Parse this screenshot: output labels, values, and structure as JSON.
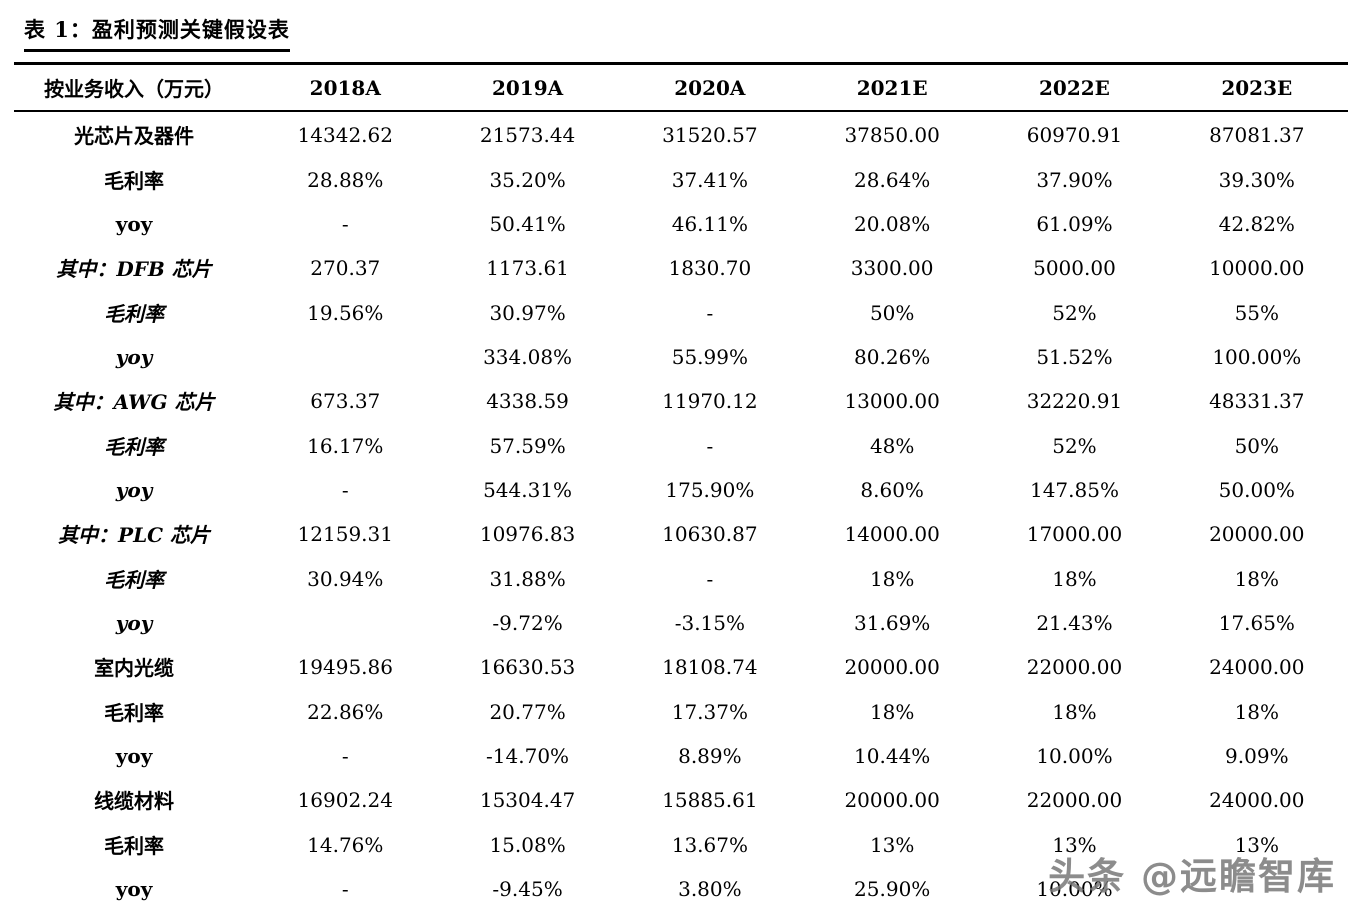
{
  "page": {
    "title": "表 1：盈利预测关键假设表"
  },
  "watermark": {
    "text": "头条 @远瞻智库"
  },
  "table": {
    "headers": [
      "按业务收入（万元）",
      "2018A",
      "2019A",
      "2020A",
      "2021E",
      "2022E",
      "2023E"
    ],
    "rows": [
      {
        "label": "光芯片及器件",
        "style": "bold",
        "values": [
          "14342.62",
          "21573.44",
          "31520.57",
          "37850.00",
          "60970.91",
          "87081.37"
        ]
      },
      {
        "label": "毛利率",
        "style": "bold",
        "values": [
          "28.88%",
          "35.20%",
          "37.41%",
          "28.64%",
          "37.90%",
          "39.30%"
        ]
      },
      {
        "label": "yoy",
        "style": "bold",
        "values": [
          "-",
          "50.41%",
          "46.11%",
          "20.08%",
          "61.09%",
          "42.82%"
        ]
      },
      {
        "label": "其中：DFB 芯片",
        "style": "bold-italic",
        "values": [
          "270.37",
          "1173.61",
          "1830.70",
          "3300.00",
          "5000.00",
          "10000.00"
        ]
      },
      {
        "label": "毛利率",
        "style": "bold-italic",
        "values": [
          "19.56%",
          "30.97%",
          "-",
          "50%",
          "52%",
          "55%"
        ]
      },
      {
        "label": "yoy",
        "style": "bold-italic",
        "values": [
          "",
          "334.08%",
          "55.99%",
          "80.26%",
          "51.52%",
          "100.00%"
        ]
      },
      {
        "label": "其中：AWG 芯片",
        "style": "bold-italic",
        "values": [
          "673.37",
          "4338.59",
          "11970.12",
          "13000.00",
          "32220.91",
          "48331.37"
        ]
      },
      {
        "label": "毛利率",
        "style": "bold-italic",
        "values": [
          "16.17%",
          "57.59%",
          "-",
          "48%",
          "52%",
          "50%"
        ]
      },
      {
        "label": "yoy",
        "style": "bold-italic",
        "values": [
          "-",
          "544.31%",
          "175.90%",
          "8.60%",
          "147.85%",
          "50.00%"
        ]
      },
      {
        "label": "其中：PLC 芯片",
        "style": "bold-italic",
        "values": [
          "12159.31",
          "10976.83",
          "10630.87",
          "14000.00",
          "17000.00",
          "20000.00"
        ]
      },
      {
        "label": "毛利率",
        "style": "bold-italic",
        "values": [
          "30.94%",
          "31.88%",
          "-",
          "18%",
          "18%",
          "18%"
        ]
      },
      {
        "label": "yoy",
        "style": "bold-italic",
        "values": [
          "",
          "-9.72%",
          "-3.15%",
          "31.69%",
          "21.43%",
          "17.65%"
        ]
      },
      {
        "label": "室内光缆",
        "style": "bold",
        "values": [
          "19495.86",
          "16630.53",
          "18108.74",
          "20000.00",
          "22000.00",
          "24000.00"
        ]
      },
      {
        "label": "毛利率",
        "style": "bold",
        "values": [
          "22.86%",
          "20.77%",
          "17.37%",
          "18%",
          "18%",
          "18%"
        ]
      },
      {
        "label": "yoy",
        "style": "bold",
        "values": [
          "-",
          "-14.70%",
          "8.89%",
          "10.44%",
          "10.00%",
          "9.09%"
        ]
      },
      {
        "label": "线缆材料",
        "style": "bold",
        "values": [
          "16902.24",
          "15304.47",
          "15885.61",
          "20000.00",
          "22000.00",
          "24000.00"
        ]
      },
      {
        "label": "毛利率",
        "style": "bold",
        "values": [
          "14.76%",
          "15.08%",
          "13.67%",
          "13%",
          "13%",
          "13%"
        ]
      },
      {
        "label": "yoy",
        "style": "bold",
        "values": [
          "-",
          "-9.45%",
          "3.80%",
          "25.90%",
          "10.00%",
          ""
        ]
      }
    ]
  }
}
